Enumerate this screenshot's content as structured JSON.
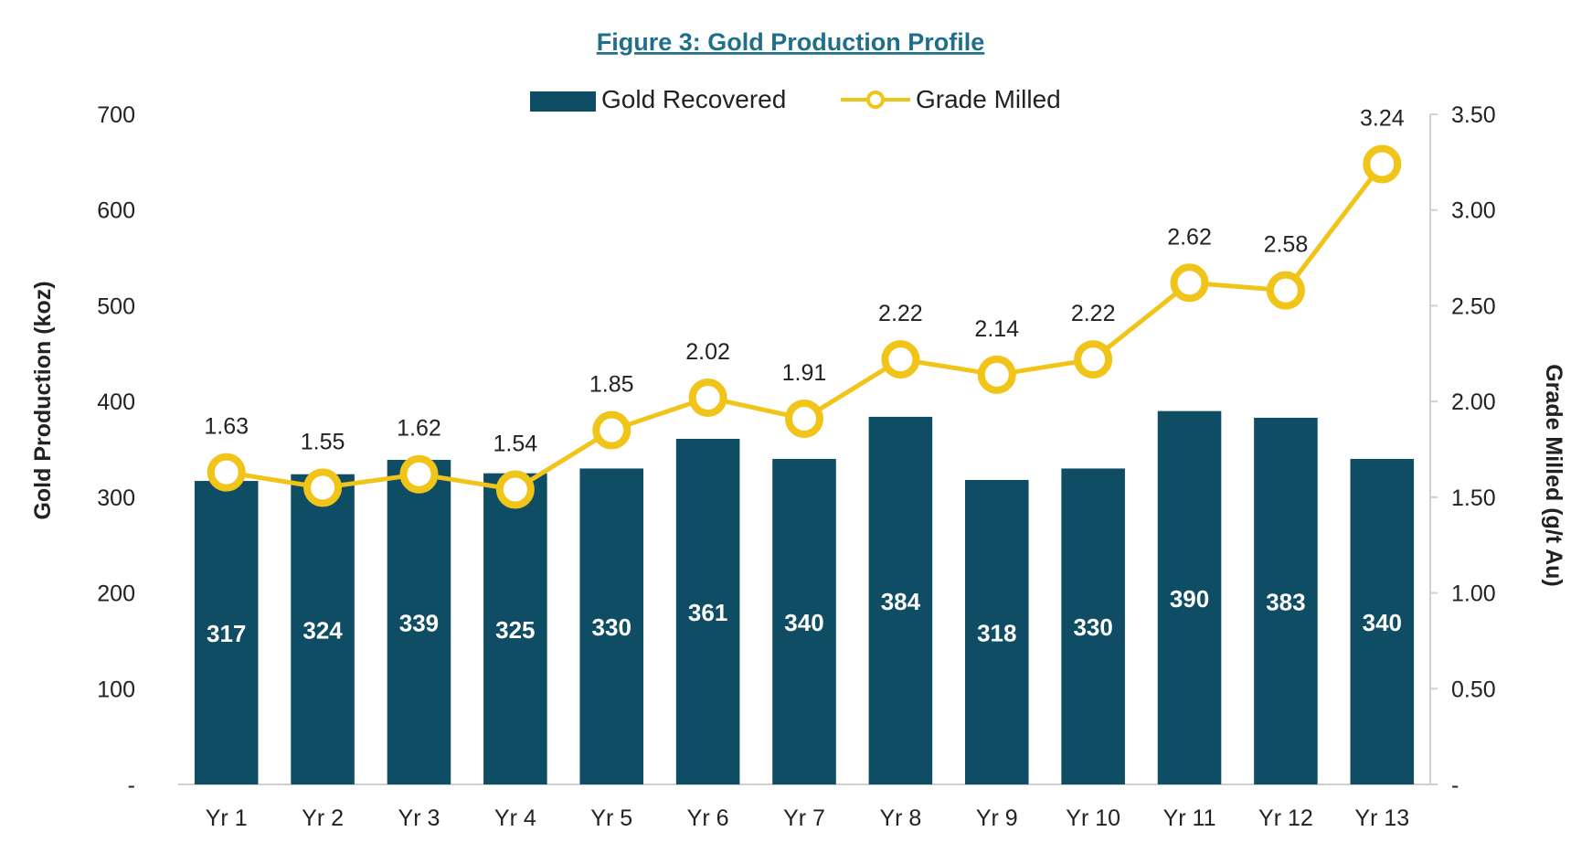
{
  "chart_data": {
    "type": "bar+line",
    "title": "Figure 3: Gold Production Profile",
    "categories": [
      "Yr 1",
      "Yr 2",
      "Yr 3",
      "Yr 4",
      "Yr 5",
      "Yr 6",
      "Yr 7",
      "Yr 8",
      "Yr 9",
      "Yr 10",
      "Yr 11",
      "Yr 12",
      "Yr 13"
    ],
    "series": [
      {
        "name": "Gold Recovered",
        "type": "bar",
        "axis": "left",
        "values": [
          317,
          324,
          339,
          325,
          330,
          361,
          340,
          384,
          318,
          330,
          390,
          383,
          340
        ],
        "labels": [
          "317",
          "324",
          "339",
          "325",
          "330",
          "361",
          "340",
          "384",
          "318",
          "330",
          "390",
          "383",
          "340"
        ],
        "color": "#0e4d64"
      },
      {
        "name": "Grade Milled",
        "type": "line",
        "axis": "right",
        "values": [
          1.63,
          1.55,
          1.62,
          1.54,
          1.85,
          2.02,
          1.91,
          2.22,
          2.14,
          2.22,
          2.62,
          2.58,
          3.24
        ],
        "labels": [
          "1.63",
          "1.55",
          "1.62",
          "1.54",
          "1.85",
          "2.02",
          "1.91",
          "2.22",
          "2.14",
          "2.22",
          "2.62",
          "2.58",
          "3.24"
        ],
        "color": "#f0c418"
      }
    ],
    "ylabel": "Gold Production (koz)",
    "y2label": "Grade Milled (g/t Au)",
    "ylim": [
      0,
      700
    ],
    "y2lim": [
      0,
      3.5
    ],
    "yticks": [
      0,
      100,
      200,
      300,
      400,
      500,
      600,
      700
    ],
    "ytick_labels": [
      "-",
      "100",
      "200",
      "300",
      "400",
      "500",
      "600",
      "700"
    ],
    "y2ticks": [
      0,
      0.5,
      1.0,
      1.5,
      2.0,
      2.5,
      3.0,
      3.5
    ],
    "y2tick_labels": [
      "-",
      "0.50",
      "1.00",
      "1.50",
      "2.00",
      "2.50",
      "3.00",
      "3.50"
    ],
    "legend_position": "top-center",
    "grid": false
  }
}
